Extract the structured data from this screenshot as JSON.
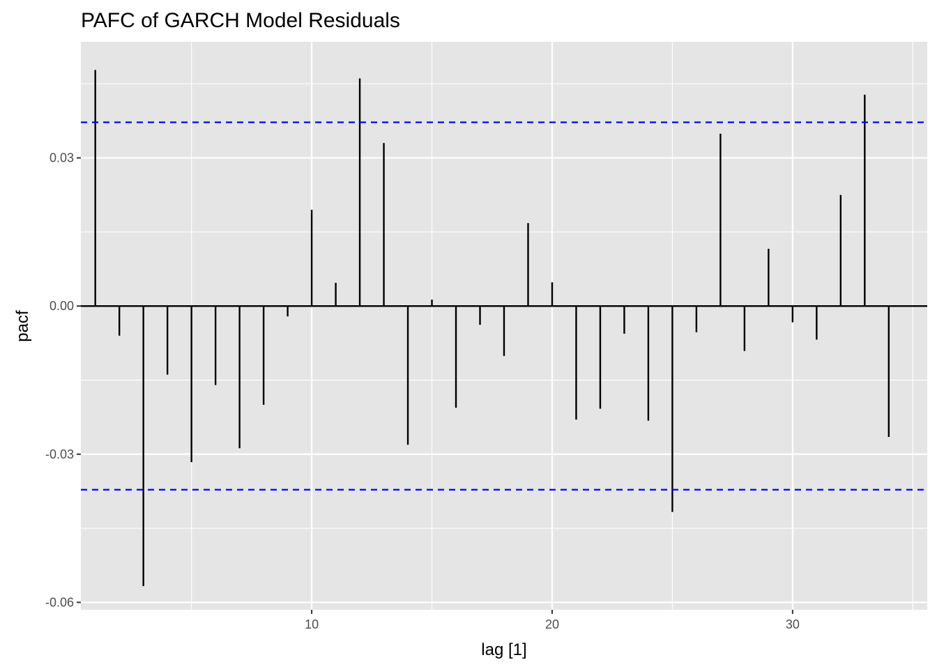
{
  "chart_data": {
    "type": "bar",
    "title": "PAFC of GARCH Model Residuals",
    "xlabel": "lag [1]",
    "ylabel": "pacf",
    "x": [
      1,
      2,
      3,
      4,
      5,
      6,
      7,
      8,
      9,
      10,
      11,
      12,
      13,
      14,
      15,
      16,
      17,
      18,
      19,
      20,
      21,
      22,
      23,
      24,
      25,
      26,
      27,
      28,
      29,
      30,
      31,
      32,
      33,
      34
    ],
    "values": [
      0.0478,
      -0.006,
      -0.0567,
      -0.0139,
      -0.0316,
      -0.016,
      -0.0288,
      -0.02,
      -0.0021,
      0.0195,
      0.0047,
      0.0461,
      0.033,
      -0.0281,
      0.0013,
      -0.0206,
      -0.0038,
      -0.0101,
      0.0168,
      0.0048,
      -0.023,
      -0.0208,
      -0.0056,
      -0.0232,
      -0.0417,
      -0.0053,
      0.0349,
      -0.0091,
      0.0116,
      -0.0033,
      -0.0068,
      0.0225,
      0.0428,
      -0.0265
    ],
    "confidence_limits": [
      0.0372,
      -0.0372
    ],
    "xlim": [
      0.4,
      35.6
    ],
    "ylim": [
      -0.0615,
      0.0535
    ],
    "x_ticks": [
      10,
      20,
      30
    ],
    "x_tick_labels": [
      "10",
      "20",
      "30"
    ],
    "y_ticks": [
      0.03,
      0.0,
      -0.03,
      -0.06
    ],
    "y_tick_labels": [
      "0.03",
      "0.00",
      "-0.03",
      "-0.06"
    ],
    "grid": true,
    "colors": {
      "panel_background": "#e5e5e5",
      "grid": "#ffffff",
      "bars": "#000000",
      "confidence_line": "#0000ff"
    }
  }
}
